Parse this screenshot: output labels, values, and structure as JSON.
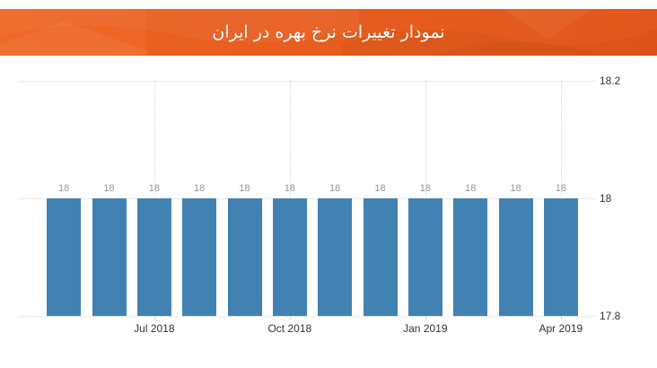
{
  "header": {
    "title": "نمودار تغییرات نرخ بهره در ایران",
    "bg_color": "#ea6023",
    "text_color": "#ffffff"
  },
  "chart_data": {
    "type": "bar",
    "title": "نمودار تغییرات نرخ بهره در ایران",
    "values": [
      18,
      18,
      18,
      18,
      18,
      18,
      18,
      18,
      18,
      18,
      18,
      18
    ],
    "bar_labels": [
      "18",
      "18",
      "18",
      "18",
      "18",
      "18",
      "18",
      "18",
      "18",
      "18",
      "18",
      "18"
    ],
    "x_tick_labels": [
      "Jul 2018",
      "Oct 2018",
      "Jan 2019",
      "Apr 2019"
    ],
    "x_tick_bar_index": [
      2,
      5,
      8,
      11
    ],
    "y_tick_labels": [
      "18.2",
      "18",
      "17.8"
    ],
    "y_tick_values": [
      18.2,
      18,
      17.8
    ],
    "ylim": [
      17.8,
      18.2
    ],
    "xlabel": "",
    "ylabel": "",
    "grid": "dotted",
    "legend": "none",
    "bar_color": "#4282b3",
    "bar_label_color": "#949699",
    "axis_text_color": "#303338",
    "grid_color": "#d4d4d4"
  }
}
